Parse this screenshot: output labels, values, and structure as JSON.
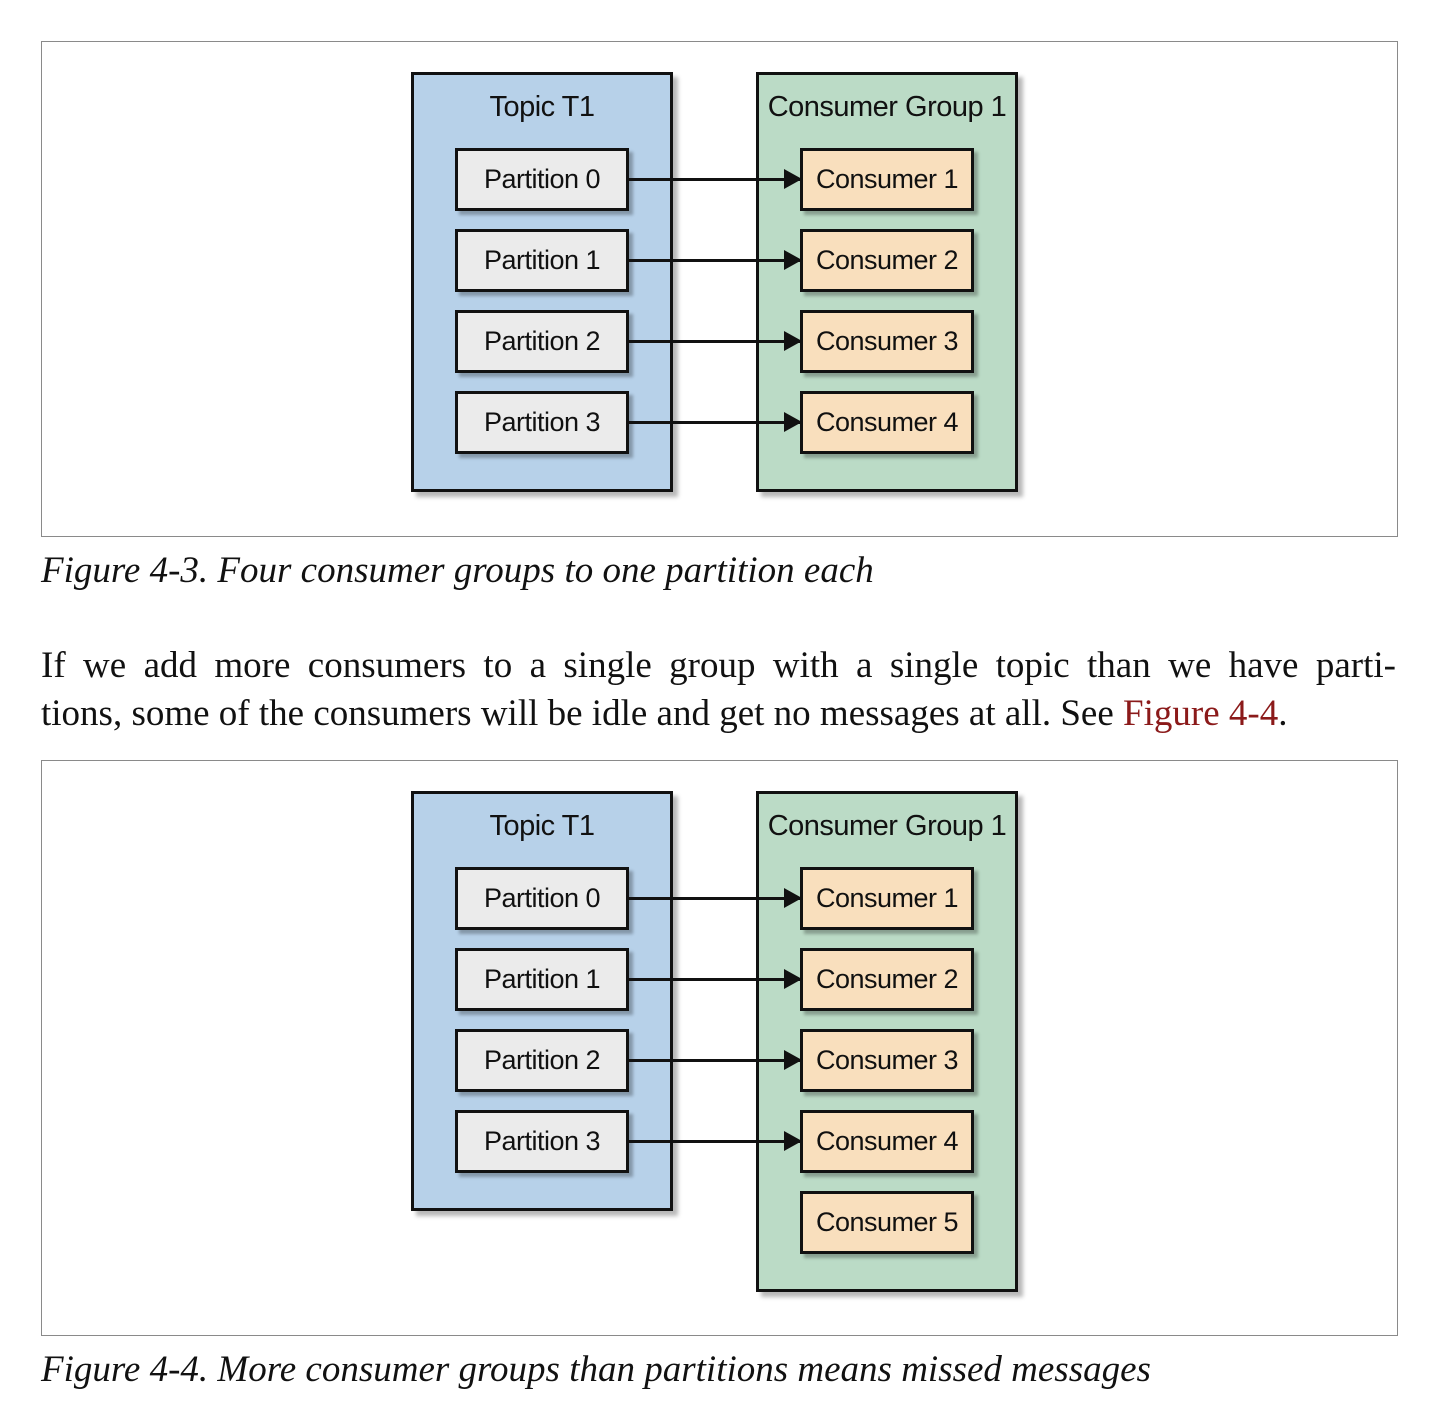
{
  "figures": [
    {
      "topic_title": "Topic T1",
      "partitions": [
        "Partition 0",
        "Partition 1",
        "Partition 2",
        "Partition 3"
      ],
      "group_title": "Consumer Group 1",
      "consumers": [
        "Consumer 1",
        "Consumer 2",
        "Consumer 3",
        "Consumer 4"
      ],
      "assignments": [
        [
          0,
          0
        ],
        [
          1,
          1
        ],
        [
          2,
          2
        ],
        [
          3,
          3
        ]
      ],
      "caption": "Figure 4-3. Four consumer groups to one partition each"
    },
    {
      "topic_title": "Topic T1",
      "partitions": [
        "Partition 0",
        "Partition 1",
        "Partition 2",
        "Partition 3"
      ],
      "group_title": "Consumer Group 1",
      "consumers": [
        "Consumer 1",
        "Consumer 2",
        "Consumer 3",
        "Consumer 4",
        "Consumer 5"
      ],
      "assignments": [
        [
          0,
          0
        ],
        [
          1,
          1
        ],
        [
          2,
          2
        ],
        [
          3,
          3
        ]
      ],
      "caption": "Figure 4-4. More consumer groups than partitions means missed messages"
    }
  ],
  "paragraph": {
    "line1": "If we add more consumers to a single group with a single topic than we have parti-",
    "line2_text": "tions, some of the consumers will be idle and get no messages at all. See ",
    "line2_link": "Figure 4-4",
    "line2_end": "."
  },
  "colors": {
    "topic_fill": "#b7d1e9",
    "group_fill": "#bbdbc6",
    "partition_fill": "#ebebeb",
    "consumer_fill": "#f9dfbd",
    "link_color": "#8b1a1a"
  }
}
